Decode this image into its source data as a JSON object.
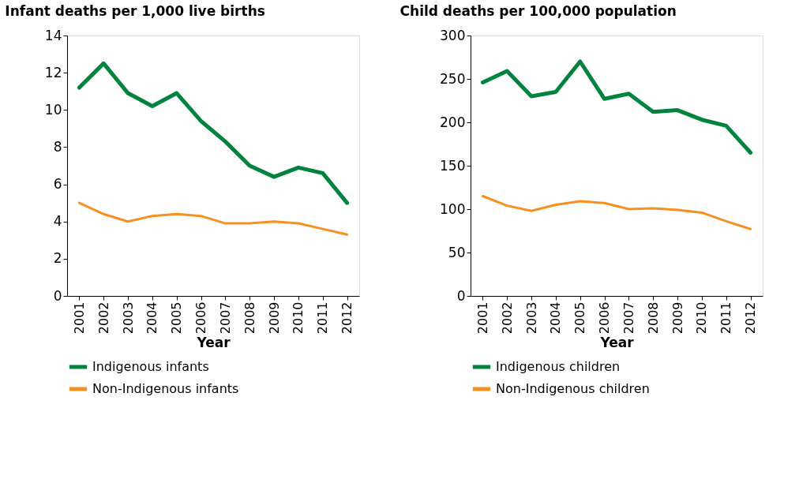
{
  "chart_data": [
    {
      "type": "line",
      "title": "Infant deaths per 1,000 live births",
      "xlabel": "Year",
      "categories": [
        "2001",
        "2002",
        "2003",
        "2004",
        "2005",
        "2006",
        "2007",
        "2008",
        "2009",
        "2010",
        "2011",
        "2012"
      ],
      "series": [
        {
          "name": "Indigenous infants",
          "color": "#00843d",
          "values": [
            11.2,
            12.5,
            10.9,
            10.2,
            10.9,
            9.4,
            8.3,
            7.0,
            6.4,
            6.9,
            6.6,
            5.0
          ]
        },
        {
          "name": "Non-Indigenous infants",
          "color": "#f7901e",
          "values": [
            5.0,
            4.4,
            4.0,
            4.3,
            4.4,
            4.3,
            3.9,
            3.9,
            4.0,
            3.9,
            3.6,
            3.3
          ]
        }
      ],
      "ylim": [
        0,
        14
      ],
      "yticks": [
        0,
        2,
        4,
        6,
        8,
        10,
        12,
        14
      ],
      "grid": false,
      "legend": "bottom"
    },
    {
      "type": "line",
      "title": "Child deaths per 100,000 population",
      "xlabel": "Year",
      "categories": [
        "2001",
        "2002",
        "2003",
        "2004",
        "2005",
        "2006",
        "2007",
        "2008",
        "2009",
        "2010",
        "2011",
        "2012"
      ],
      "series": [
        {
          "name": "Indigenous children",
          "color": "#00843d",
          "values": [
            246,
            259,
            230,
            235,
            270,
            227,
            233,
            212,
            214,
            203,
            196,
            165
          ]
        },
        {
          "name": "Non-Indigenous children",
          "color": "#f7901e",
          "values": [
            115,
            104,
            98,
            105,
            109,
            107,
            100,
            101,
            99,
            96,
            86,
            77
          ]
        }
      ],
      "ylim": [
        0,
        300
      ],
      "yticks": [
        0,
        50,
        100,
        150,
        200,
        250,
        300
      ],
      "grid": false,
      "legend": "bottom"
    }
  ]
}
